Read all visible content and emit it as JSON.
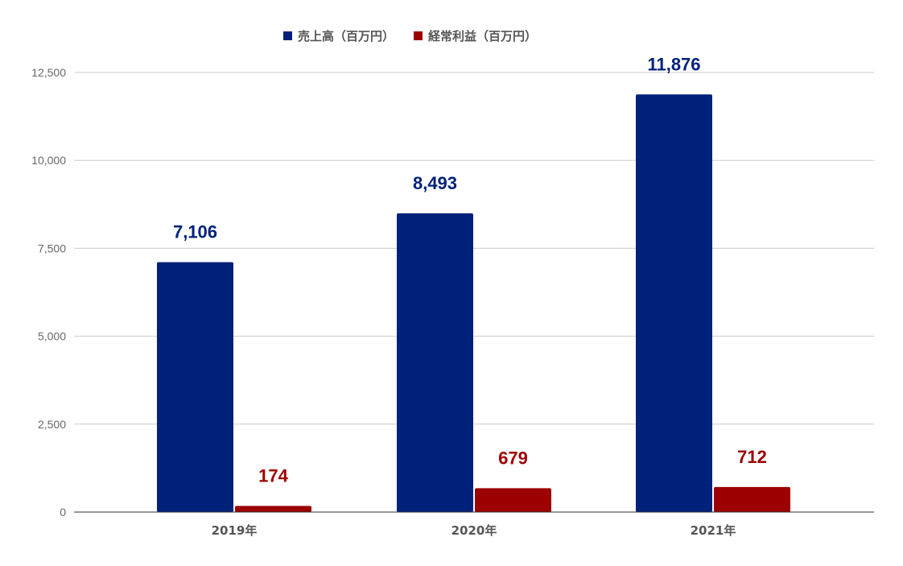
{
  "chart_data": {
    "type": "bar",
    "categories": [
      "2019年",
      "2020年",
      "2021年"
    ],
    "series": [
      {
        "name": "売上高（百万円）",
        "values": [
          7106,
          8493,
          11876
        ],
        "labels": [
          "7,106",
          "8,493",
          "11,876"
        ],
        "color": "#00217a"
      },
      {
        "name": "経常利益（百万円）",
        "values": [
          174,
          679,
          712
        ],
        "labels": [
          "174",
          "679",
          "712"
        ],
        "color": "#9c0000"
      }
    ],
    "yticks": [
      0,
      2500,
      5000,
      7500,
      10000,
      12500
    ],
    "ytick_labels": [
      "0",
      "2,500",
      "5,000",
      "7,500",
      "10,000",
      "12,500"
    ],
    "ylim": [
      0,
      12500
    ],
    "grid": true,
    "legend_position": "top",
    "title": "",
    "xlabel": "",
    "ylabel": ""
  }
}
